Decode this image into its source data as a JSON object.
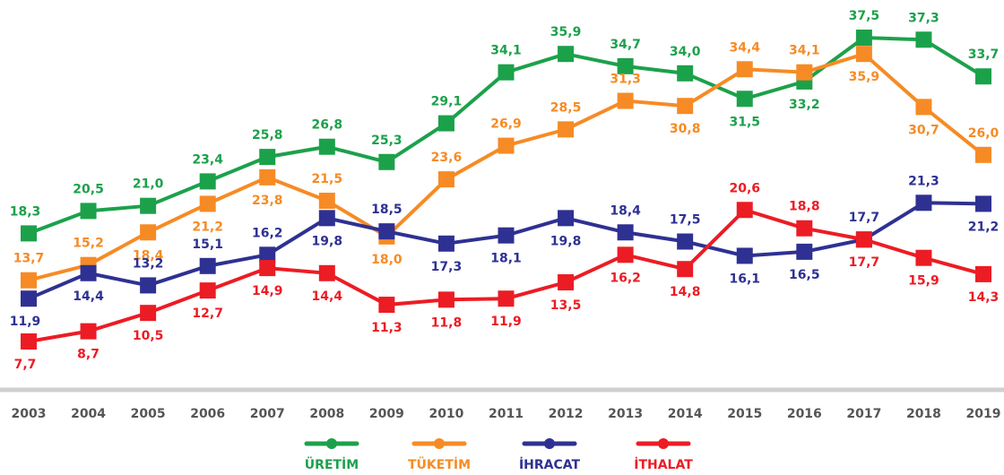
{
  "chart_data": {
    "type": "line",
    "categories": [
      "2003",
      "2004",
      "2005",
      "2006",
      "2007",
      "2008",
      "2009",
      "2010",
      "2011",
      "2012",
      "2013",
      "2014",
      "2015",
      "2016",
      "2017",
      "2018",
      "2019"
    ],
    "series": [
      {
        "name": "ÜRETİM",
        "color": "#1ca14b",
        "values": [
          18.3,
          20.5,
          21.0,
          23.4,
          25.8,
          26.8,
          25.3,
          29.1,
          34.1,
          35.9,
          34.7,
          34.0,
          31.5,
          33.2,
          37.5,
          37.3,
          33.7
        ],
        "value_labels": [
          "18,3",
          "20,5",
          "21,0",
          "23,4",
          "25,8",
          "26,8",
          "25,3",
          "29,1",
          "34,1",
          "35,9",
          "34,7",
          "34,0",
          "31,5",
          "33,2",
          "37,5",
          "37,3",
          "33,7"
        ]
      },
      {
        "name": "TÜKETİM",
        "color": "#f68b25",
        "values": [
          13.7,
          15.2,
          18.4,
          21.2,
          23.8,
          21.5,
          18.0,
          23.6,
          26.9,
          28.5,
          31.3,
          30.8,
          34.4,
          34.1,
          35.9,
          30.7,
          26.0
        ],
        "value_labels": [
          "13,7",
          "15,2",
          "18,4",
          "21,2",
          "23,8",
          "21,5",
          "18,0",
          "23,6",
          "26,9",
          "28,5",
          "31,3",
          "30,8",
          "34,4",
          "34,1",
          "35,9",
          "30,7",
          "26,0"
        ]
      },
      {
        "name": "İHRACAT",
        "color": "#2e3192",
        "values": [
          11.9,
          14.4,
          13.2,
          15.1,
          16.2,
          19.8,
          18.5,
          17.3,
          18.1,
          19.8,
          18.4,
          17.5,
          16.1,
          16.5,
          17.7,
          21.3,
          21.2
        ],
        "value_labels": [
          "11,9",
          "14,4",
          "13,2",
          "15,1",
          "16,2",
          "19,8",
          "18,5",
          "17,3",
          "18,1",
          "19,8",
          "18,4",
          "17,5",
          "16,1",
          "16,5",
          "17,7",
          "21,3",
          "21,2"
        ]
      },
      {
        "name": "İTHALAT",
        "color": "#ec1c24",
        "values": [
          7.7,
          8.7,
          10.5,
          12.7,
          14.9,
          14.4,
          11.3,
          11.8,
          11.9,
          13.5,
          16.2,
          14.8,
          20.6,
          18.8,
          17.7,
          15.9,
          14.3
        ],
        "value_labels": [
          "7,7",
          "8,7",
          "10,5",
          "12,7",
          "14,9",
          "14,4",
          "11,3",
          "11,8",
          "11,9",
          "13,5",
          "16,2",
          "14,8",
          "20,6",
          "18,8",
          "17,7",
          "15,9",
          "14,3"
        ]
      }
    ]
  }
}
